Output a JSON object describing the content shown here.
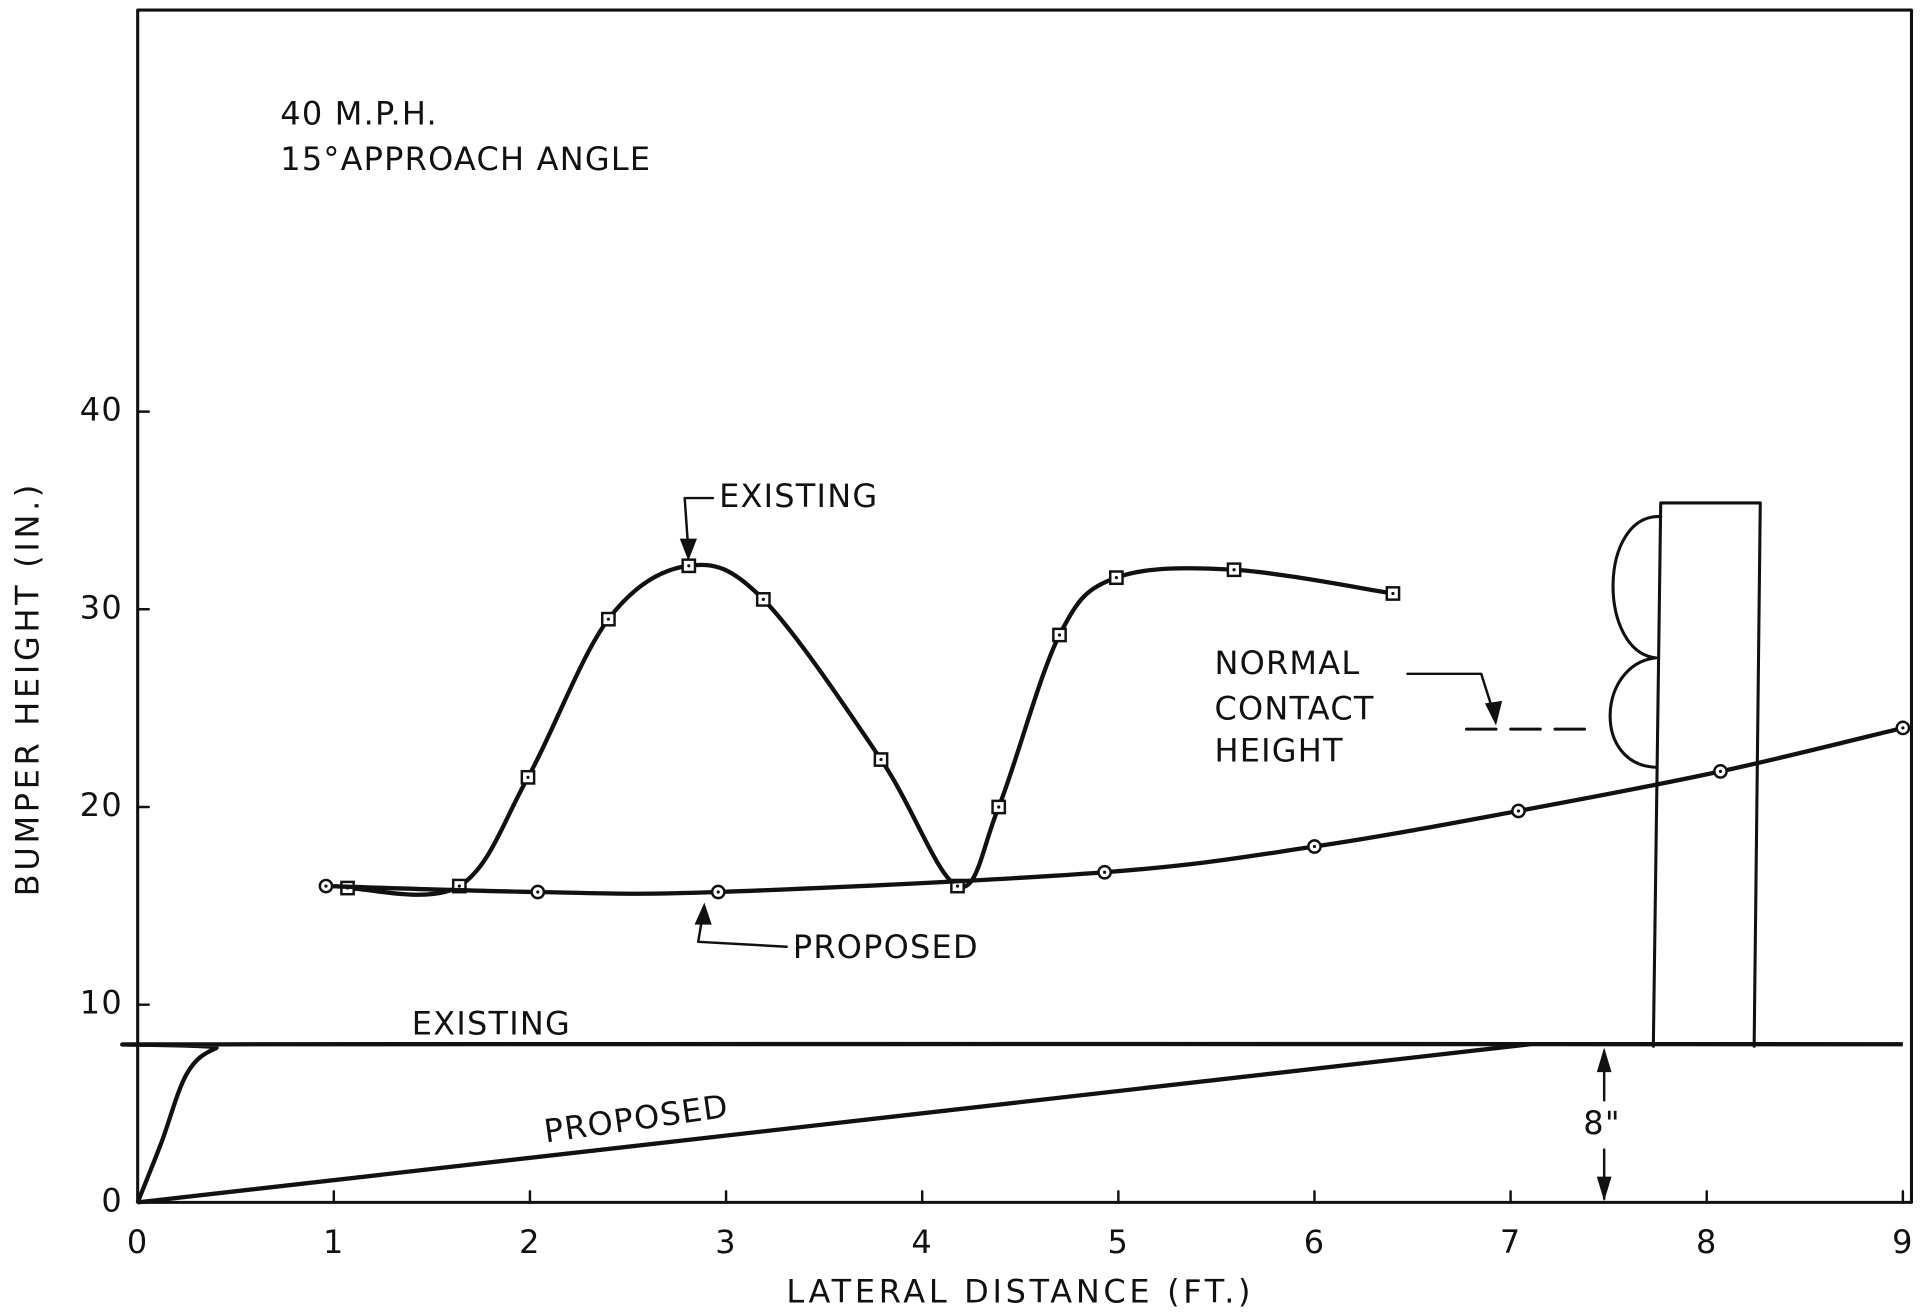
{
  "chart_data": {
    "type": "line",
    "xlabel": "LATERAL DISTANCE (FT.)",
    "ylabel": "BUMPER HEIGHT (IN.)",
    "xlim": [
      0,
      9
    ],
    "ylim": [
      0,
      60
    ],
    "xticks": [
      0,
      1,
      2,
      3,
      4,
      5,
      6,
      7,
      8,
      9
    ],
    "yticks": [
      0,
      10,
      20,
      30,
      40
    ],
    "annotations": {
      "speed": "40 M.P.H.",
      "angle": "15°APPROACH ANGLE",
      "normal_contact": [
        "NORMAL",
        "CONTACT",
        "HEIGHT"
      ],
      "curb_height": "8\""
    },
    "series": [
      {
        "name": "EXISTING",
        "color": "#111111",
        "marker": "square",
        "x": [
          1.07,
          1.64,
          1.99,
          2.4,
          2.81,
          3.19,
          3.79,
          4.18,
          4.39,
          4.7,
          4.99,
          5.59,
          6.4
        ],
        "values": [
          15.9,
          16,
          21.5,
          29.5,
          32.2,
          30.5,
          22.4,
          16,
          20,
          28.7,
          31.6,
          32,
          30.8
        ]
      },
      {
        "name": "PROPOSED",
        "color": "#111111",
        "marker": "circle",
        "x": [
          0.96,
          2.04,
          2.96,
          4.93,
          6,
          7.04,
          8.07,
          9
        ],
        "values": [
          16,
          15.7,
          15.7,
          16.7,
          18,
          19.8,
          21.8,
          24
        ]
      }
    ],
    "curb_series": [
      {
        "name": "EXISTING",
        "color": "#111111",
        "x": [
          0,
          0.12,
          0.25,
          0.4,
          0.6,
          9
        ],
        "values": [
          0,
          3,
          6.5,
          7.8,
          8,
          8
        ]
      },
      {
        "name": "PROPOSED",
        "color": "#111111",
        "x": [
          0,
          7.1
        ],
        "values": [
          0,
          8
        ]
      }
    ]
  }
}
